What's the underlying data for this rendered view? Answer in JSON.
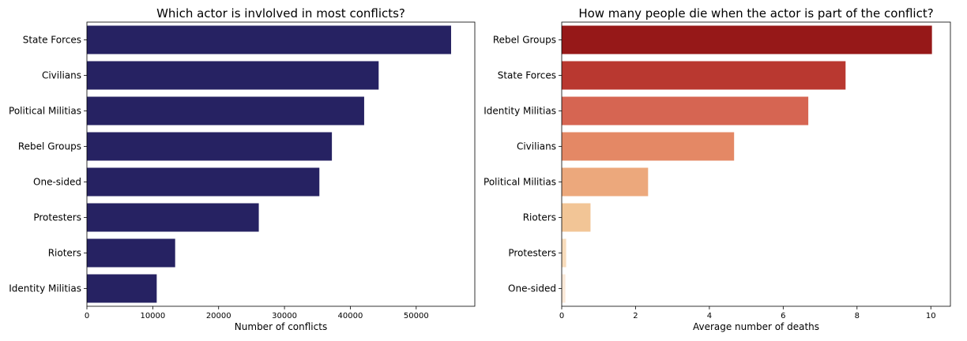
{
  "chart_data": [
    {
      "type": "bar",
      "orientation": "horizontal",
      "title": "Which actor is invlolved in most conflicts?",
      "xlabel": "Number of conflicts",
      "ylabel": "",
      "categories": [
        "State Forces",
        "Civilians",
        "Political Militias",
        "Rebel Groups",
        "One-sided",
        "Protesters",
        "Rioters",
        "Identity Militias"
      ],
      "values": [
        55300,
        44300,
        42100,
        37200,
        35300,
        26100,
        13400,
        10600
      ],
      "colors": [
        "#262262",
        "#262262",
        "#262262",
        "#262262",
        "#262262",
        "#262262",
        "#262262",
        "#262262"
      ],
      "xlim": [
        0,
        58900
      ],
      "xticks": [
        0,
        10000,
        20000,
        30000,
        40000,
        50000
      ],
      "grid": false,
      "legend": "none"
    },
    {
      "type": "bar",
      "orientation": "horizontal",
      "title": "How many people die when the actor is part of the conflict?",
      "xlabel": "Average number of deaths",
      "ylabel": "",
      "categories": [
        "Rebel Groups",
        "State Forces",
        "Identity Militias",
        "Civilians",
        "Political Militias",
        "Rioters",
        "Protesters",
        "One-sided"
      ],
      "values": [
        10.03,
        7.69,
        6.68,
        4.67,
        2.34,
        0.78,
        0.12,
        0.1
      ],
      "colors": [
        "#961818",
        "#b93830",
        "#d66552",
        "#e48865",
        "#eca87c",
        "#f2c596",
        "#f8dcbb",
        "#fbe9d8"
      ],
      "xlim": [
        0,
        10.53
      ],
      "xticks": [
        0,
        2,
        4,
        6,
        8,
        10
      ],
      "grid": false,
      "legend": "none"
    }
  ]
}
